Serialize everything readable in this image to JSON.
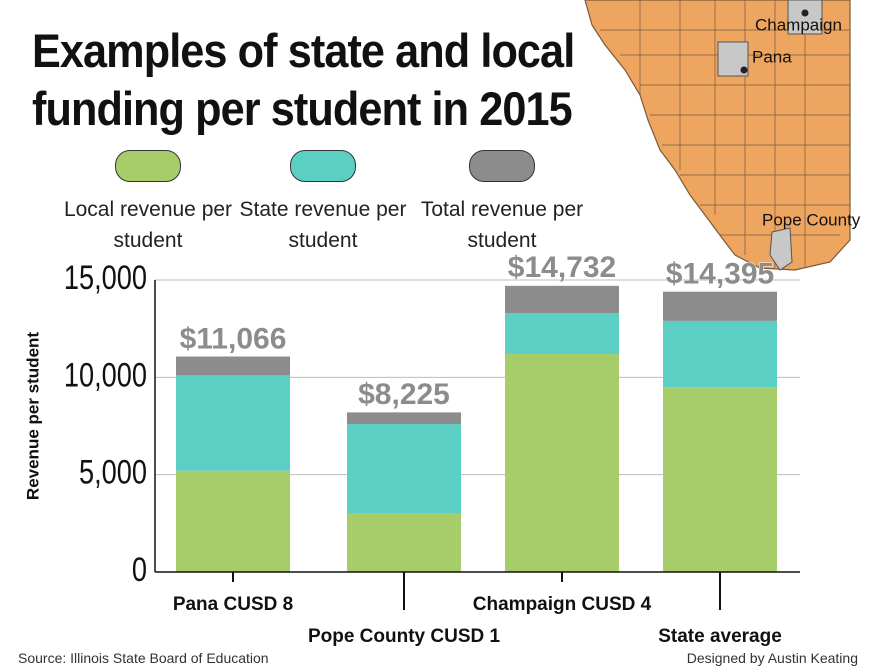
{
  "title": "Examples of state and local funding per student in 2015",
  "chart_data": {
    "type": "bar",
    "stacked": true,
    "y_label": "Revenue per student",
    "categories": [
      "Pana CUSD 8",
      "Pope County CUSD 1",
      "Champaign CUSD 4",
      "State average"
    ],
    "series": [
      {
        "name": "Local revenue per student",
        "color": "#a7cd6a",
        "values": [
          5200,
          3000,
          11200,
          9500
        ]
      },
      {
        "name": "State revenue per student",
        "color": "#5ccfc5",
        "values": [
          4900,
          4600,
          2100,
          3400
        ]
      },
      {
        "name": "Total revenue per student",
        "color": "#8c8c8c",
        "values": [
          970,
          600,
          1400,
          1500
        ]
      }
    ],
    "totals": [
      11066,
      8225,
      14732,
      14395
    ],
    "total_labels": [
      "$11,066",
      "$8,225",
      "$14,732",
      "$14,395"
    ],
    "ylim": [
      0,
      15000
    ],
    "yticks": [
      {
        "value": 0,
        "label": "0"
      },
      {
        "value": 5000,
        "label": "5,000"
      },
      {
        "value": 10000,
        "label": "10,000"
      },
      {
        "value": 15000,
        "label": "15,000"
      }
    ],
    "grid": true
  },
  "map": {
    "labels": [
      "Champaign",
      "Pana",
      "Pope County"
    ]
  },
  "footer": {
    "source": "Source: Illinois State Board of Education",
    "credit": "Designed by Austin Keating"
  }
}
